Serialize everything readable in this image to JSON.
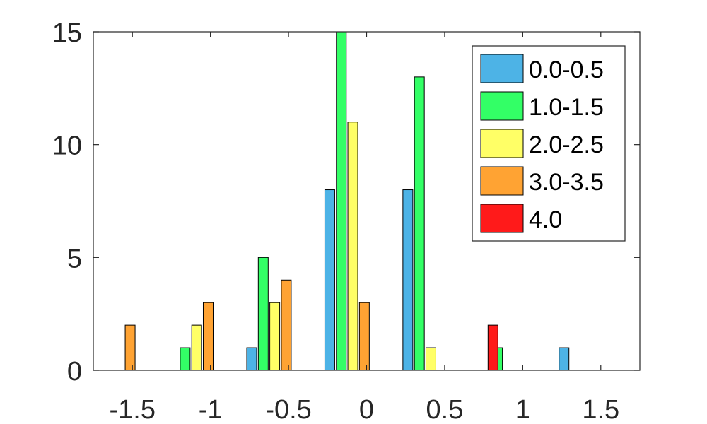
{
  "chart_data": {
    "type": "bar",
    "title": "",
    "xlabel": "",
    "ylabel": "",
    "xlim": [
      -1.75,
      1.75
    ],
    "ylim": [
      0,
      15
    ],
    "xticks": [
      "-1.5",
      "-1",
      "-0.5",
      "0",
      "0.5",
      "1",
      "1.5"
    ],
    "yticks": [
      "0",
      "5",
      "10",
      "15"
    ],
    "grid": false,
    "legend_position": "top-right",
    "series": [
      {
        "name": "0.0-0.5",
        "color": "#4db3e6",
        "points": [
          {
            "x": -0.625,
            "y": 1
          },
          {
            "x": -0.125,
            "y": 8
          },
          {
            "x": 0.375,
            "y": 8
          },
          {
            "x": 1.375,
            "y": 1
          }
        ]
      },
      {
        "name": "1.0-1.5",
        "color": "#33ff66",
        "points": [
          {
            "x": -1.125,
            "y": 1
          },
          {
            "x": -0.625,
            "y": 5
          },
          {
            "x": -0.125,
            "y": 15
          },
          {
            "x": 0.375,
            "y": 13
          },
          {
            "x": 0.875,
            "y": 1
          }
        ]
      },
      {
        "name": "2.0-2.5",
        "color": "#ffff66",
        "points": [
          {
            "x": -1.125,
            "y": 2
          },
          {
            "x": -0.625,
            "y": 3
          },
          {
            "x": -0.125,
            "y": 11
          },
          {
            "x": 0.375,
            "y": 1
          }
        ]
      },
      {
        "name": "3.0-3.5",
        "color": "#ffa333",
        "points": [
          {
            "x": -1.625,
            "y": 2
          },
          {
            "x": -1.125,
            "y": 3
          },
          {
            "x": -0.625,
            "y": 4
          },
          {
            "x": -0.125,
            "y": 3
          }
        ]
      },
      {
        "name": "4.0",
        "color": "#ff1a1a",
        "points": [
          {
            "x": 0.625,
            "y": 2
          }
        ]
      }
    ]
  }
}
